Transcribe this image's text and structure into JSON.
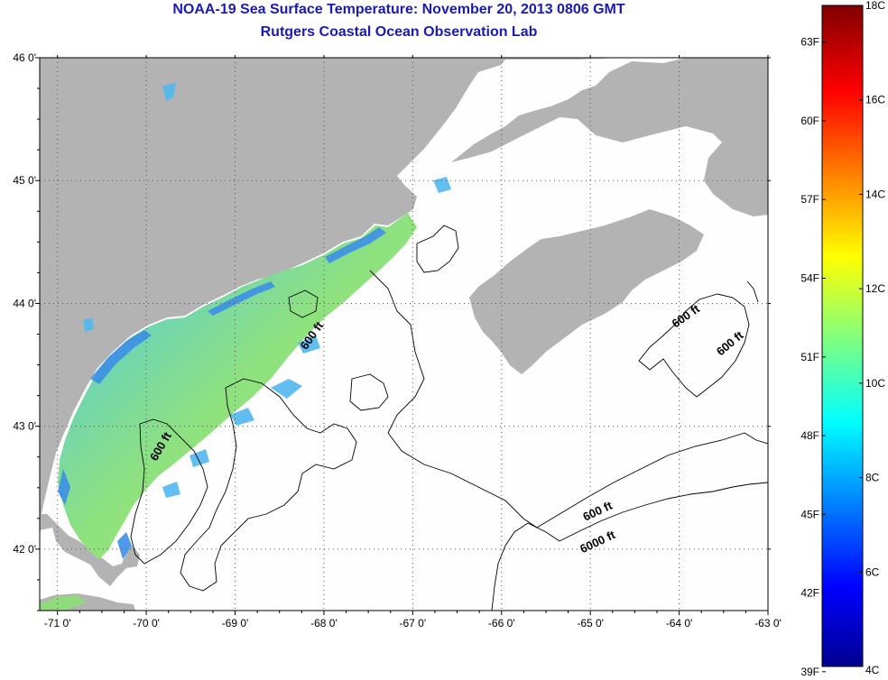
{
  "header": {
    "title": "NOAA-19 Sea Surface Temperature:  November 20, 2013 0806 GMT",
    "subtitle": "Rutgers Coastal Ocean Observation Lab"
  },
  "map": {
    "lon_range": [
      -71.2,
      -63.0
    ],
    "lat_range": [
      41.5,
      46.0
    ],
    "lon_ticks": [
      {
        "value": -71,
        "label": "-71 0'"
      },
      {
        "value": -70,
        "label": "-70 0'"
      },
      {
        "value": -69,
        "label": "-69 0'"
      },
      {
        "value": -68,
        "label": "-68 0'"
      },
      {
        "value": -67,
        "label": "-67 0'"
      },
      {
        "value": -66,
        "label": "-66 0'"
      },
      {
        "value": -65,
        "label": "-65 0'"
      },
      {
        "value": -64,
        "label": "-64 0'"
      },
      {
        "value": -63,
        "label": "-63 0'"
      }
    ],
    "lat_ticks": [
      {
        "value": 46,
        "label": "46 0'"
      },
      {
        "value": 45,
        "label": "45 0'"
      },
      {
        "value": 44,
        "label": "44 0'"
      },
      {
        "value": 43,
        "label": "43 0'"
      },
      {
        "value": 42,
        "label": "42 0'"
      }
    ],
    "contour_labels": [
      {
        "text": "600 ft",
        "lon": -68.1,
        "lat": 43.72
      },
      {
        "text": "600 ft",
        "lon": -69.8,
        "lat": 42.82
      },
      {
        "text": "600 ft",
        "lon": -63.9,
        "lat": 43.87
      },
      {
        "text": "600 ft",
        "lon": -63.4,
        "lat": 43.65
      },
      {
        "text": "600 ft",
        "lon": -64.9,
        "lat": 42.28
      },
      {
        "text": "6000 ft",
        "lon": -64.9,
        "lat": 42.03
      }
    ],
    "colors": {
      "land": "#b3b3b3",
      "no_data": "#ffffff",
      "grid": "#555555"
    }
  },
  "colorbar": {
    "celsius_labels": [
      "18C",
      "16C",
      "14C",
      "12C",
      "10C",
      "8C",
      "6C",
      "4C"
    ],
    "fahrenheit_labels": [
      "63F",
      "60F",
      "57F",
      "54F",
      "51F",
      "48F",
      "45F",
      "42F",
      "39F"
    ],
    "colormap": [
      "#00008f",
      "#0000ff",
      "#00ffff",
      "#ffff00",
      "#ff0000",
      "#800000"
    ]
  }
}
